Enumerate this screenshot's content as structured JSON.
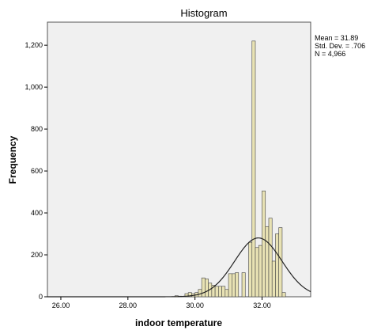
{
  "chart_data": {
    "type": "bar",
    "title": "Histogram",
    "xlabel": "indoor temperature",
    "ylabel": "Frequency",
    "xlim": [
      25.6,
      33.45
    ],
    "ylim": [
      0,
      1310
    ],
    "x_ticks": [
      26.0,
      28.0,
      30.0,
      32.0
    ],
    "x_tick_labels": [
      "26.00",
      "28.00",
      "30.00",
      "32.00"
    ],
    "y_ticks": [
      0,
      200,
      400,
      600,
      800,
      1000,
      1200
    ],
    "y_tick_labels": [
      "0",
      "200",
      "400",
      "600",
      "800",
      "1,000",
      "1,200"
    ],
    "grid": false,
    "bar_color": "#e8e2b4",
    "bar_edge_color": "#444444",
    "plot_background": "#f0f0f0",
    "curve_color": "#222222",
    "bin_width": 0.1,
    "bins": [
      {
        "x0": 29.4,
        "count": 5
      },
      {
        "x0": 29.5,
        "count": 3
      },
      {
        "x0": 29.7,
        "count": 15
      },
      {
        "x0": 29.8,
        "count": 20
      },
      {
        "x0": 29.9,
        "count": 15
      },
      {
        "x0": 30.0,
        "count": 20
      },
      {
        "x0": 30.1,
        "count": 35
      },
      {
        "x0": 30.2,
        "count": 90
      },
      {
        "x0": 30.3,
        "count": 85
      },
      {
        "x0": 30.4,
        "count": 65
      },
      {
        "x0": 30.5,
        "count": 55
      },
      {
        "x0": 30.6,
        "count": 50
      },
      {
        "x0": 30.7,
        "count": 50
      },
      {
        "x0": 30.8,
        "count": 50
      },
      {
        "x0": 30.9,
        "count": 35
      },
      {
        "x0": 31.0,
        "count": 110
      },
      {
        "x0": 31.1,
        "count": 110
      },
      {
        "x0": 31.2,
        "count": 115
      },
      {
        "x0": 31.4,
        "count": 115
      },
      {
        "x0": 31.6,
        "count": 260
      },
      {
        "x0": 31.7,
        "count": 1220
      },
      {
        "x0": 31.8,
        "count": 235
      },
      {
        "x0": 31.9,
        "count": 245
      },
      {
        "x0": 32.0,
        "count": 505
      },
      {
        "x0": 32.1,
        "count": 335
      },
      {
        "x0": 32.2,
        "count": 375
      },
      {
        "x0": 32.3,
        "count": 170
      },
      {
        "x0": 32.4,
        "count": 300
      },
      {
        "x0": 32.5,
        "count": 330
      },
      {
        "x0": 32.6,
        "count": 20
      }
    ],
    "normal_curve": {
      "mean": 31.89,
      "sd": 0.706,
      "n": 4966
    },
    "stats": {
      "mean": "Mean = 31.89",
      "sd": "Std. Dev. = .706",
      "n": "N = 4,966"
    }
  }
}
